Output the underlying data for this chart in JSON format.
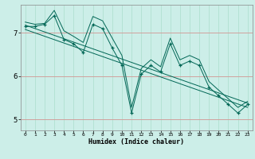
{
  "xlabel": "Humidex (Indice chaleur)",
  "bg_color": "#cceee8",
  "grid_color": "#aaddcc",
  "line_color": "#006655",
  "xlim": [
    -0.5,
    23.5
  ],
  "ylim": [
    4.75,
    7.65
  ],
  "yticks": [
    5,
    6,
    7
  ],
  "xticks": [
    0,
    1,
    2,
    3,
    4,
    5,
    6,
    7,
    8,
    9,
    10,
    11,
    12,
    13,
    14,
    15,
    16,
    17,
    18,
    19,
    20,
    21,
    22,
    23
  ],
  "main_x": [
    0,
    1,
    2,
    3,
    4,
    5,
    6,
    7,
    8,
    9,
    10,
    11,
    12,
    13,
    14,
    15,
    16,
    17,
    18,
    19,
    20,
    21,
    22,
    23
  ],
  "main_y": [
    7.15,
    7.15,
    7.2,
    7.4,
    6.85,
    6.75,
    6.55,
    7.2,
    7.1,
    6.65,
    6.25,
    5.15,
    6.05,
    6.25,
    6.1,
    6.75,
    6.25,
    6.35,
    6.25,
    5.75,
    5.55,
    5.35,
    5.15,
    5.35
  ],
  "upper_x": [
    0,
    1,
    2,
    3,
    4,
    5,
    6,
    7,
    8,
    9,
    10,
    11,
    12,
    13,
    14,
    15,
    16,
    17,
    18,
    19,
    20,
    21,
    22,
    23
  ],
  "upper_y": [
    7.25,
    7.2,
    7.22,
    7.52,
    7.05,
    6.92,
    6.78,
    7.38,
    7.28,
    6.88,
    6.48,
    5.28,
    6.18,
    6.38,
    6.22,
    6.88,
    6.38,
    6.48,
    6.38,
    5.88,
    5.68,
    5.48,
    5.28,
    5.42
  ],
  "trend1_x": [
    0,
    23
  ],
  "trend1_y": [
    7.18,
    5.38
  ],
  "trend2_x": [
    0,
    23
  ],
  "trend2_y": [
    7.08,
    5.28
  ]
}
